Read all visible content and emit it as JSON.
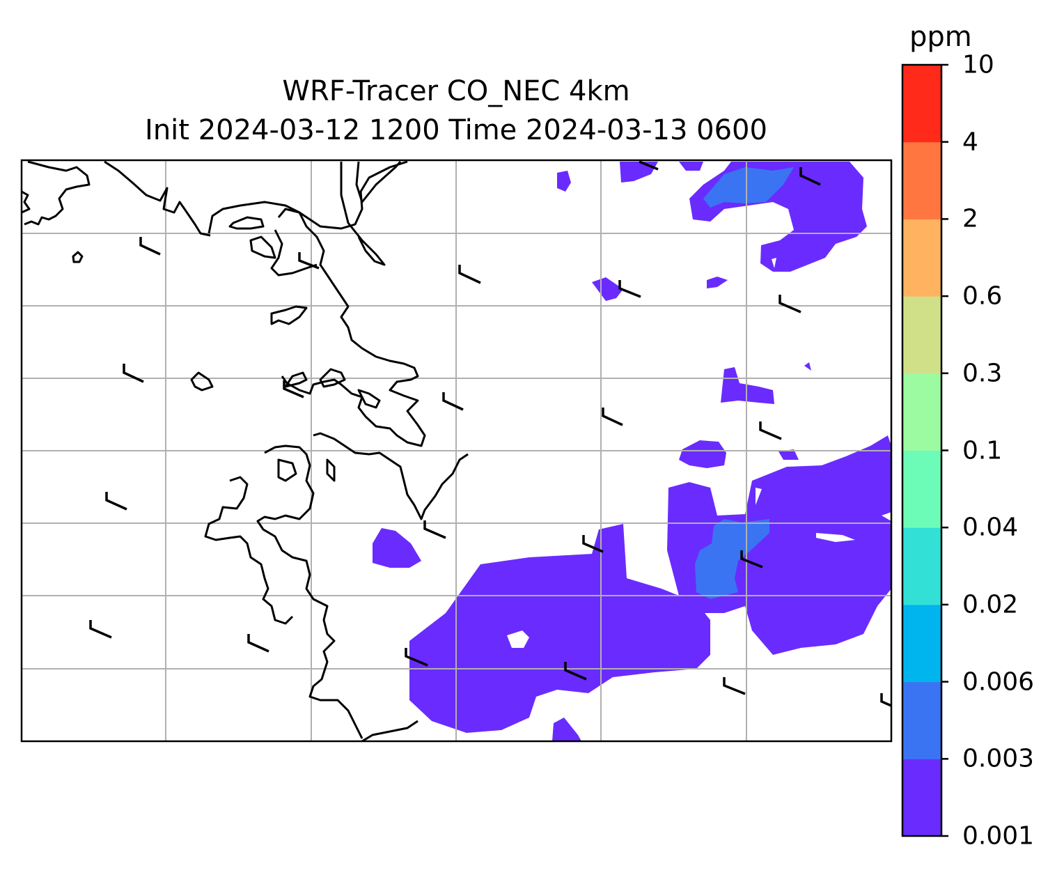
{
  "title": {
    "line1": "WRF-Tracer CO_NEC 4km",
    "line2": "Init 2024-03-12 1200 Time 2024-03-13 0600"
  },
  "colorbar": {
    "unit": "ppm",
    "levels": [
      "0.001",
      "0.003",
      "0.006",
      "0.02",
      "0.04",
      "0.1",
      "0.3",
      "0.6",
      "2",
      "4",
      "10"
    ],
    "colors": [
      "#6a2bff",
      "#3a74f3",
      "#00b4ee",
      "#32e0d6",
      "#6dfcb8",
      "#9cfba0",
      "#d0e088",
      "#ffb25f",
      "#ff7640",
      "#ff2a1a"
    ]
  },
  "map": {
    "gridlines": true,
    "land_color": "#ffffff",
    "coastline_color": "#000000",
    "gridline_color": "#b0b0b0"
  }
}
